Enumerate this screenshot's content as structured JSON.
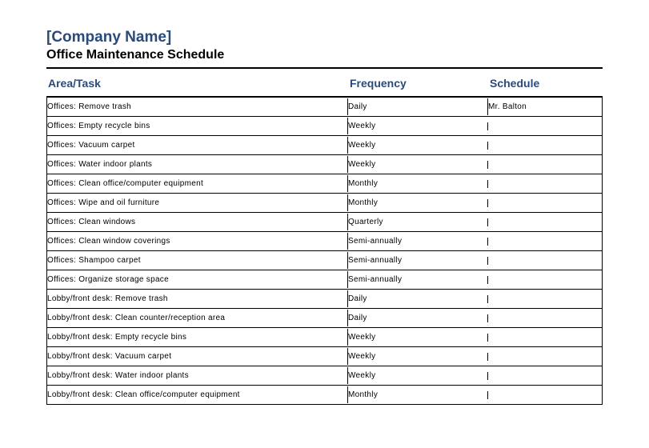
{
  "header": {
    "company_name": "[Company Name]",
    "subtitle": "Office Maintenance Schedule"
  },
  "table": {
    "columns": {
      "area": "Area/Task",
      "frequency": "Frequency",
      "schedule": "Schedule"
    },
    "column_widths": {
      "area": 375,
      "frequency": 175
    },
    "colors": {
      "header_text": "#2a4a7a",
      "body_text": "#000000",
      "border": "#000000",
      "background": "#ffffff"
    },
    "typography": {
      "company_fontsize": 19,
      "subtitle_fontsize": 16,
      "header_fontsize": 14,
      "body_fontsize": 10
    },
    "rows": [
      {
        "area": "Offices: Remove trash",
        "frequency": "Daily",
        "schedule": "Mr. Balton"
      },
      {
        "area": "Offices: Empty recycle bins",
        "frequency": "Weekly",
        "schedule": ""
      },
      {
        "area": "Offices: Vacuum carpet",
        "frequency": "Weekly",
        "schedule": ""
      },
      {
        "area": "Offices: Water indoor plants",
        "frequency": "Weekly",
        "schedule": ""
      },
      {
        "area": "Offices: Clean office/computer equipment",
        "frequency": "Monthly",
        "schedule": ""
      },
      {
        "area": "Offices: Wipe and oil furniture",
        "frequency": "Monthly",
        "schedule": ""
      },
      {
        "area": "Offices: Clean windows",
        "frequency": "Quarterly",
        "schedule": ""
      },
      {
        "area": "Offices: Clean window coverings",
        "frequency": "Semi-annually",
        "schedule": ""
      },
      {
        "area": "Offices: Shampoo carpet",
        "frequency": "Semi-annually",
        "schedule": ""
      },
      {
        "area": "Offices: Organize storage space",
        "frequency": "Semi-annually",
        "schedule": ""
      },
      {
        "area": "Lobby/front desk: Remove trash",
        "frequency": "Daily",
        "schedule": ""
      },
      {
        "area": "Lobby/front desk: Clean counter/reception area",
        "frequency": "Daily",
        "schedule": ""
      },
      {
        "area": "Lobby/front desk: Empty recycle bins",
        "frequency": "Weekly",
        "schedule": ""
      },
      {
        "area": "Lobby/front desk: Vacuum carpet",
        "frequency": "Weekly",
        "schedule": ""
      },
      {
        "area": "Lobby/front desk: Water indoor plants",
        "frequency": "Weekly",
        "schedule": ""
      },
      {
        "area": "Lobby/front desk: Clean office/computer equipment",
        "frequency": "Monthly",
        "schedule": ""
      }
    ]
  }
}
